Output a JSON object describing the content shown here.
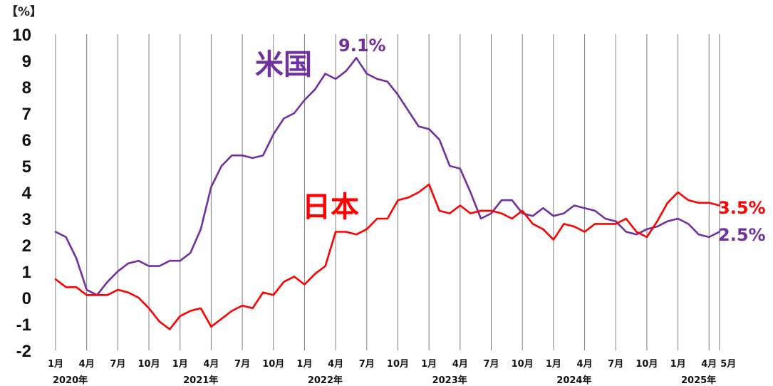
{
  "chart_data": {
    "type": "line",
    "unit_label": "【%】",
    "ylim": [
      -2,
      10
    ],
    "y_ticks": [
      "10",
      "9",
      "8",
      "7",
      "6",
      "5",
      "4",
      "3",
      "2",
      "1",
      "0",
      "-1",
      "-2"
    ],
    "x_tick_labels": [
      {
        "index": 0,
        "label": "1月"
      },
      {
        "index": 3,
        "label": "4月"
      },
      {
        "index": 6,
        "label": "7月"
      },
      {
        "index": 9,
        "label": "10月"
      },
      {
        "index": 12,
        "label": "1月"
      },
      {
        "index": 15,
        "label": "4月"
      },
      {
        "index": 18,
        "label": "7月"
      },
      {
        "index": 21,
        "label": "10月"
      },
      {
        "index": 24,
        "label": "1月"
      },
      {
        "index": 27,
        "label": "4月"
      },
      {
        "index": 30,
        "label": "7月"
      },
      {
        "index": 33,
        "label": "10月"
      },
      {
        "index": 36,
        "label": "1月"
      },
      {
        "index": 39,
        "label": "4月"
      },
      {
        "index": 42,
        "label": "7月"
      },
      {
        "index": 45,
        "label": "10月"
      },
      {
        "index": 48,
        "label": "1月"
      },
      {
        "index": 51,
        "label": "4月"
      },
      {
        "index": 54,
        "label": "7月"
      },
      {
        "index": 57,
        "label": "10月"
      },
      {
        "index": 60,
        "label": "1月"
      },
      {
        "index": 63,
        "label": "4月"
      },
      {
        "index": 64,
        "label": "5月"
      }
    ],
    "year_labels": [
      {
        "index": 0,
        "label": "2020年"
      },
      {
        "index": 12,
        "label": "2021年"
      },
      {
        "index": 24,
        "label": "2022年"
      },
      {
        "index": 36,
        "label": "2023年"
      },
      {
        "index": 48,
        "label": "2024年"
      },
      {
        "index": 60,
        "label": "2025年"
      }
    ],
    "grid": "vertical",
    "series": [
      {
        "name": "米国",
        "color": "#7030a0",
        "values": [
          2.5,
          2.3,
          1.5,
          0.3,
          0.1,
          0.6,
          1.0,
          1.3,
          1.4,
          1.2,
          1.2,
          1.4,
          1.4,
          1.7,
          2.6,
          4.2,
          5.0,
          5.4,
          5.4,
          5.3,
          5.4,
          6.2,
          6.8,
          7.0,
          7.5,
          7.9,
          8.5,
          8.3,
          8.6,
          9.1,
          8.5,
          8.3,
          8.2,
          7.7,
          7.1,
          6.5,
          6.4,
          6.0,
          5.0,
          4.9,
          4.0,
          3.0,
          3.2,
          3.7,
          3.7,
          3.2,
          3.1,
          3.4,
          3.1,
          3.2,
          3.5,
          3.4,
          3.3,
          3.0,
          2.9,
          2.5,
          2.4,
          2.6,
          2.7,
          2.9,
          3.0,
          2.8,
          2.4,
          2.3,
          2.5
        ]
      },
      {
        "name": "日本",
        "color": "#ff0000",
        "values": [
          0.7,
          0.4,
          0.4,
          0.1,
          0.1,
          0.1,
          0.3,
          0.2,
          0.0,
          -0.4,
          -0.9,
          -1.2,
          -0.7,
          -0.5,
          -0.4,
          -1.1,
          -0.8,
          -0.5,
          -0.3,
          -0.4,
          0.2,
          0.1,
          0.6,
          0.8,
          0.5,
          0.9,
          1.2,
          2.5,
          2.5,
          2.4,
          2.6,
          3.0,
          3.0,
          3.7,
          3.8,
          4.0,
          4.3,
          3.3,
          3.2,
          3.5,
          3.2,
          3.3,
          3.3,
          3.2,
          3.0,
          3.3,
          2.8,
          2.6,
          2.2,
          2.8,
          2.7,
          2.5,
          2.8,
          2.8,
          2.8,
          3.0,
          2.5,
          2.3,
          2.9,
          3.6,
          4.0,
          3.7,
          3.6,
          3.6,
          3.5
        ]
      }
    ],
    "annotations": {
      "us_label": "米国",
      "jp_label": "日本",
      "us_peak": "9.1%",
      "jp_last": "3.5%",
      "us_last": "2.5%"
    }
  }
}
